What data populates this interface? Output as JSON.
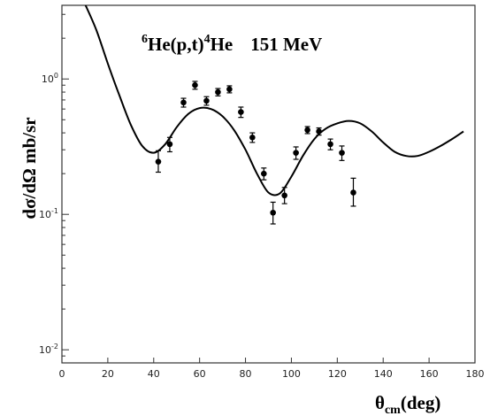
{
  "chart_data": {
    "type": "scatter",
    "title": {
      "sup1": "6",
      "main": "He(p,t)",
      "sup2": "4",
      "tail": "He",
      "energy": "151 MeV"
    },
    "ylabel": "dσ/dΩ  mb/sr",
    "xlabel": {
      "base": "θ",
      "sub": "cm",
      "tail": "(deg)"
    },
    "x_axis": {
      "range": [
        0,
        180
      ],
      "ticks": [
        "0",
        "20",
        "40",
        "60",
        "80",
        "100",
        "120",
        "140",
        "160",
        "180"
      ],
      "tick_values": [
        0,
        20,
        40,
        60,
        80,
        100,
        120,
        140,
        160,
        180
      ]
    },
    "y_axis": {
      "scale": "log",
      "range": [
        0.008,
        3.5
      ],
      "ticks": [
        {
          "value": 1,
          "base": "10",
          "exp": "0"
        },
        {
          "value": 0.1,
          "base": "10",
          "exp": "-1"
        },
        {
          "value": 0.01,
          "base": "10",
          "exp": "-2"
        }
      ]
    },
    "series": [
      {
        "kind": "points",
        "with_error_bars": true,
        "x": [
          42,
          47,
          53,
          58,
          63,
          68,
          73,
          78,
          83,
          88,
          92,
          97,
          102,
          107,
          112,
          117,
          122,
          127
        ],
        "y": [
          0.245,
          0.33,
          0.67,
          0.9,
          0.69,
          0.8,
          0.84,
          0.57,
          0.37,
          0.2,
          0.103,
          0.138,
          0.285,
          0.42,
          0.41,
          0.33,
          0.285,
          0.145
        ],
        "y_low": [
          0.205,
          0.29,
          0.62,
          0.84,
          0.64,
          0.75,
          0.79,
          0.52,
          0.34,
          0.18,
          0.085,
          0.12,
          0.255,
          0.395,
          0.385,
          0.3,
          0.25,
          0.115
        ],
        "y_high": [
          0.295,
          0.37,
          0.72,
          0.96,
          0.74,
          0.85,
          0.89,
          0.62,
          0.4,
          0.22,
          0.123,
          0.158,
          0.315,
          0.445,
          0.435,
          0.36,
          0.32,
          0.185
        ]
      },
      {
        "kind": "curve",
        "x": [
          10,
          15,
          20,
          25,
          30,
          35,
          40,
          45,
          50,
          55,
          60,
          65,
          70,
          75,
          80,
          85,
          90,
          95,
          100,
          105,
          110,
          115,
          120,
          125,
          130,
          135,
          140,
          145,
          150,
          155,
          160,
          165,
          170,
          175
        ],
        "y": [
          3.6,
          2.3,
          1.3,
          0.76,
          0.46,
          0.32,
          0.285,
          0.33,
          0.44,
          0.55,
          0.61,
          0.6,
          0.53,
          0.42,
          0.3,
          0.2,
          0.145,
          0.143,
          0.19,
          0.27,
          0.36,
          0.43,
          0.47,
          0.49,
          0.47,
          0.41,
          0.34,
          0.29,
          0.27,
          0.27,
          0.29,
          0.32,
          0.36,
          0.41
        ]
      }
    ]
  }
}
